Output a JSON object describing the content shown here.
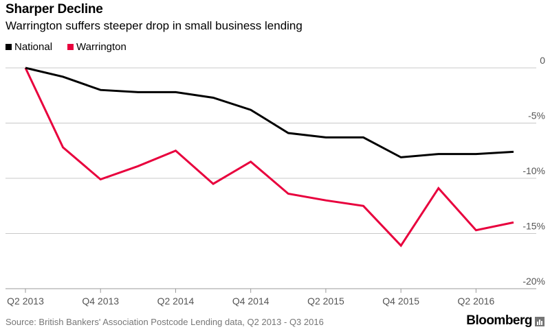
{
  "title": "Sharper Decline",
  "subtitle": "Warrington suffers steeper drop in small business lending",
  "source": "Source: British Bankers' Association Postcode Lending data, Q2 2013 - Q3 2016",
  "brand": "Bloomberg",
  "chart_data": {
    "type": "line",
    "x": [
      "Q2 2013",
      "Q3 2013",
      "Q4 2013",
      "Q1 2014",
      "Q2 2014",
      "Q3 2014",
      "Q4 2014",
      "Q1 2015",
      "Q2 2015",
      "Q3 2015",
      "Q4 2015",
      "Q1 2016",
      "Q2 2016",
      "Q3 2016"
    ],
    "x_tick_labels": [
      "Q2 2013",
      "Q4 2013",
      "Q2 2014",
      "Q4 2014",
      "Q2 2015",
      "Q4 2015",
      "Q2 2016"
    ],
    "series": [
      {
        "name": "National",
        "color": "#000000",
        "values": [
          0,
          -0.8,
          -2.0,
          -2.2,
          -2.2,
          -2.7,
          -3.8,
          -5.9,
          -6.3,
          -6.3,
          -8.1,
          -7.8,
          -7.8,
          -7.6
        ]
      },
      {
        "name": "Warrington",
        "color": "#e8003d",
        "values": [
          0,
          -7.2,
          -10.1,
          -8.9,
          -7.5,
          -10.5,
          -8.5,
          -11.4,
          -12.0,
          -12.5,
          -16.1,
          -10.9,
          -14.7,
          -14.0
        ]
      }
    ],
    "y_ticks": [
      {
        "value": 0,
        "label": "0"
      },
      {
        "value": -5,
        "label": "-5%"
      },
      {
        "value": -10,
        "label": "-10%"
      },
      {
        "value": -15,
        "label": "-15%"
      },
      {
        "value": -20,
        "label": "-20%"
      }
    ],
    "ylim": [
      -20,
      0
    ],
    "grid": true,
    "legend_position": "top-left"
  }
}
